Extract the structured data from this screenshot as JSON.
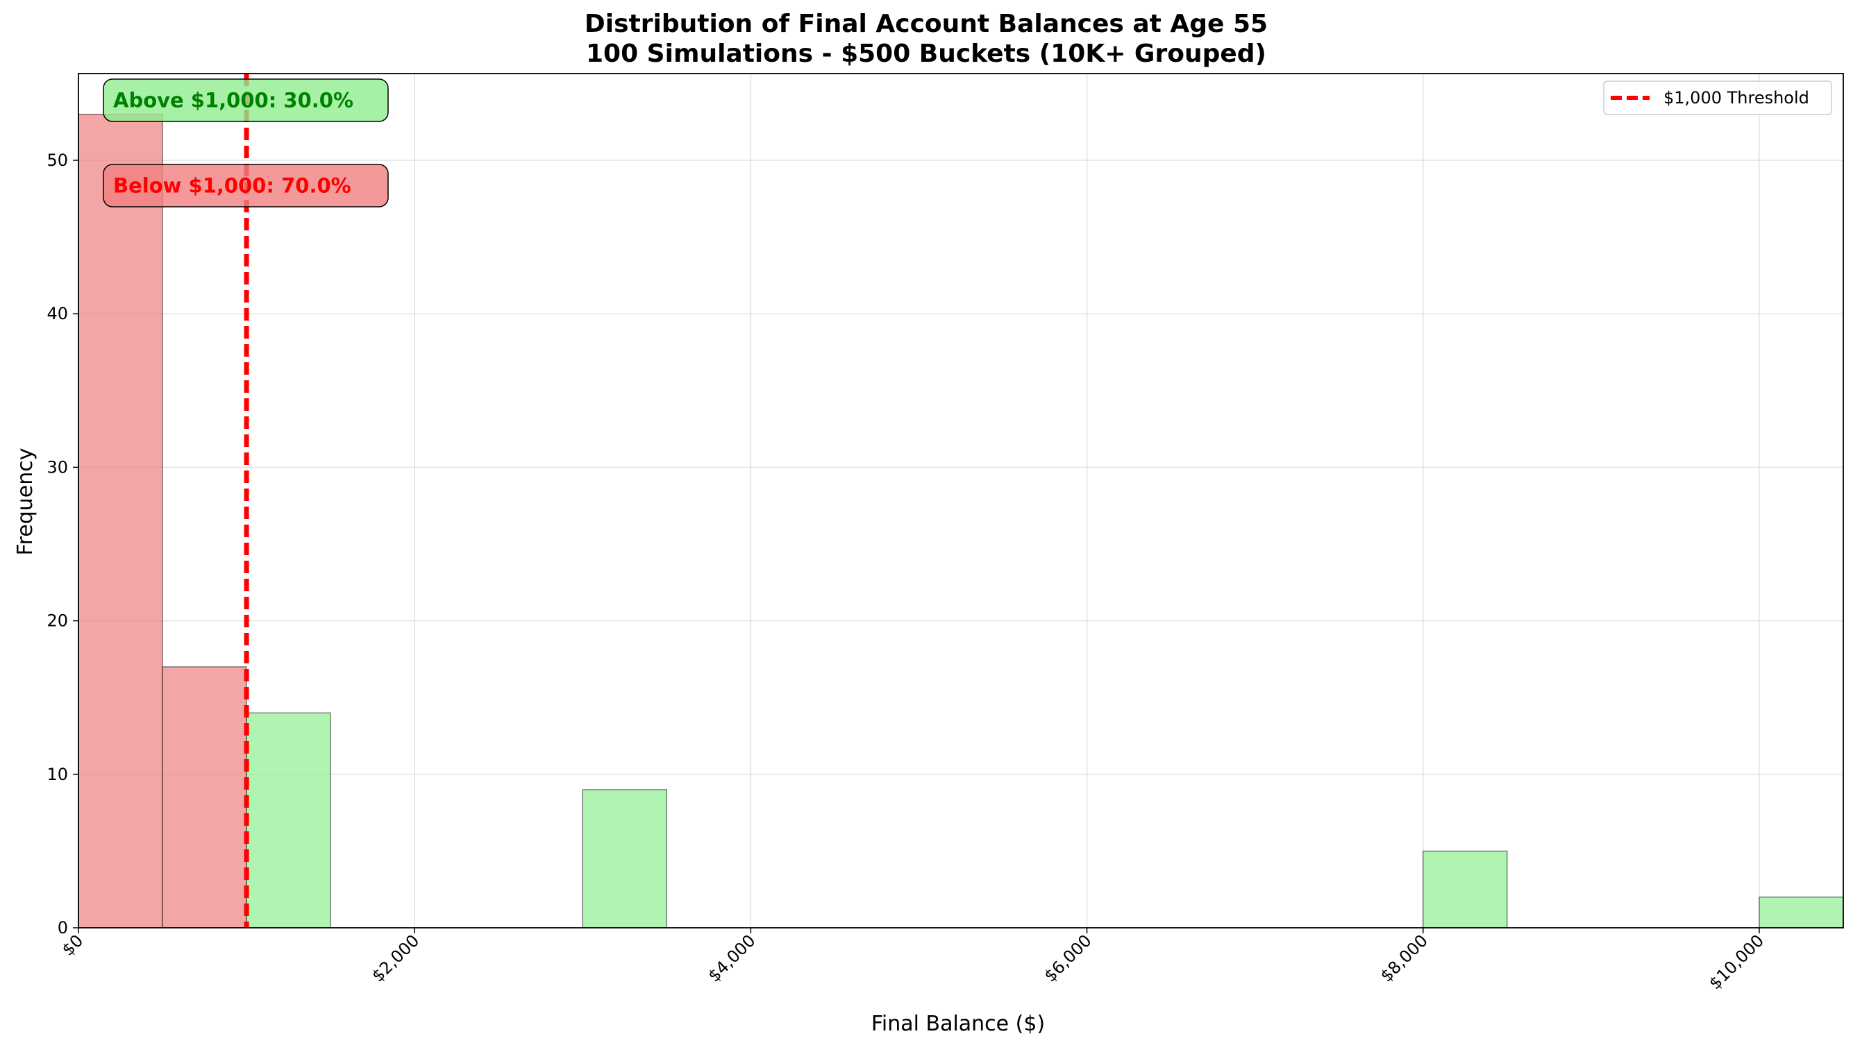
{
  "chart_data": {
    "type": "bar",
    "title_line1": "Distribution of Final Account Balances at Age 55",
    "title_line2": "100 Simulations - $500 Buckets (10K+ Grouped)",
    "xlabel": "Final Balance ($)",
    "ylabel": "Frequency",
    "xlim": [
      0,
      10500
    ],
    "ylim": [
      0,
      55.65
    ],
    "x_ticks": [
      {
        "value": 0,
        "label": "$0"
      },
      {
        "value": 2000,
        "label": "$2,000"
      },
      {
        "value": 4000,
        "label": "$4,000"
      },
      {
        "value": 6000,
        "label": "$6,000"
      },
      {
        "value": 8000,
        "label": "$8,000"
      },
      {
        "value": 10000,
        "label": "$10,000"
      }
    ],
    "y_ticks": [
      {
        "value": 0,
        "label": "0"
      },
      {
        "value": 10,
        "label": "10"
      },
      {
        "value": 20,
        "label": "20"
      },
      {
        "value": 30,
        "label": "30"
      },
      {
        "value": 40,
        "label": "40"
      },
      {
        "value": 50,
        "label": "50"
      }
    ],
    "grid": true,
    "bins": [
      {
        "start": 0,
        "end": 500,
        "count": 53,
        "group": "below"
      },
      {
        "start": 500,
        "end": 1000,
        "count": 17,
        "group": "below"
      },
      {
        "start": 1000,
        "end": 1500,
        "count": 14,
        "group": "above"
      },
      {
        "start": 3000,
        "end": 3500,
        "count": 9,
        "group": "above"
      },
      {
        "start": 8000,
        "end": 8500,
        "count": 5,
        "group": "above"
      },
      {
        "start": 10000,
        "end": 10500,
        "count": 2,
        "group": "above"
      }
    ],
    "threshold": {
      "value": 1000,
      "label": "$1,000 Threshold",
      "color": "#ff0000"
    },
    "colors": {
      "below": "#f08080",
      "above": "#90ee90",
      "below_text": "#ff0000",
      "above_text": "#008000"
    },
    "annotations": {
      "above": "Above $1,000: 30.0%",
      "below": "Below $1,000: 70.0%"
    },
    "legend_position": "upper right"
  }
}
